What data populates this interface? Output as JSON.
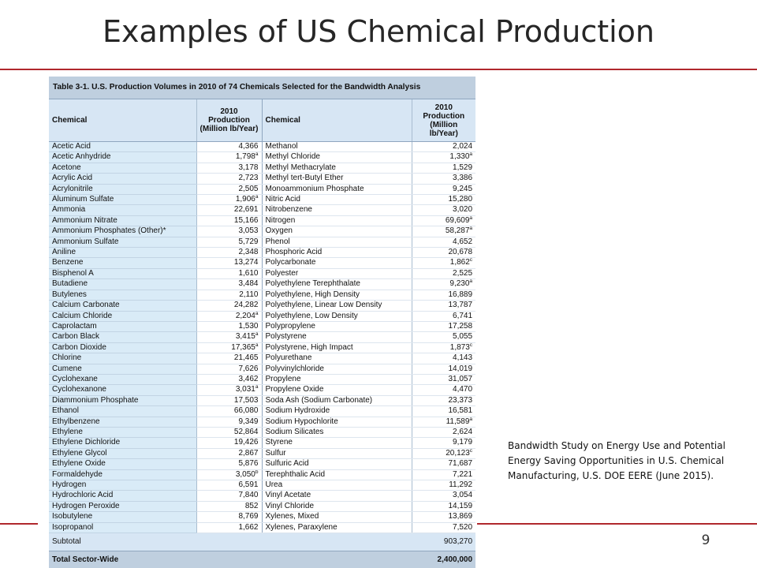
{
  "slide": {
    "title": "Examples of US Chemical Production",
    "page_number": "9",
    "citation": "Bandwidth Study on Energy Use and Potential Energy Saving Opportunities in U.S. Chemical Manufacturing, U.S. DOE EERE (June 2015)."
  },
  "table": {
    "caption": "Table 3-1. U.S. Production Volumes in 2010 of 74 Chemicals Selected for the Bandwidth Analysis",
    "headers": {
      "chemical": "Chemical",
      "production": "2010 Production (Million lb/Year)"
    },
    "rows": [
      {
        "c1": "Acetic Acid",
        "v1": "4,366",
        "s1": "",
        "c2": "Methanol",
        "v2": "2,024",
        "s2": ""
      },
      {
        "c1": "Acetic Anhydride",
        "v1": "1,798",
        "s1": "a",
        "c2": "Methyl Chloride",
        "v2": "1,330",
        "s2": "a"
      },
      {
        "c1": "Acetone",
        "v1": "3,178",
        "s1": "",
        "c2": "Methyl Methacrylate",
        "v2": "1,529",
        "s2": ""
      },
      {
        "c1": "Acrylic Acid",
        "v1": "2,723",
        "s1": "",
        "c2": "Methyl tert-Butyl Ether",
        "v2": "3,386",
        "s2": ""
      },
      {
        "c1": "Acrylonitrile",
        "v1": "2,505",
        "s1": "",
        "c2": "Monoammonium Phosphate",
        "v2": "9,245",
        "s2": ""
      },
      {
        "c1": "Aluminum Sulfate",
        "v1": "1,906",
        "s1": "a",
        "c2": "Nitric Acid",
        "v2": "15,280",
        "s2": ""
      },
      {
        "c1": "Ammonia",
        "v1": "22,691",
        "s1": "",
        "c2": "Nitrobenzene",
        "v2": "3,020",
        "s2": ""
      },
      {
        "c1": "Ammonium Nitrate",
        "v1": "15,166",
        "s1": "",
        "c2": "Nitrogen",
        "v2": "69,609",
        "s2": "a"
      },
      {
        "c1": "Ammonium Phosphates (Other)*",
        "v1": "3,053",
        "s1": "",
        "c2": "Oxygen",
        "v2": "58,287",
        "s2": "a"
      },
      {
        "c1": "Ammonium Sulfate",
        "v1": "5,729",
        "s1": "",
        "c2": "Phenol",
        "v2": "4,652",
        "s2": ""
      },
      {
        "c1": "Aniline",
        "v1": "2,348",
        "s1": "",
        "c2": "Phosphoric Acid",
        "v2": "20,678",
        "s2": ""
      },
      {
        "c1": "Benzene",
        "v1": "13,274",
        "s1": "",
        "c2": "Polycarbonate",
        "v2": "1,862",
        "s2": "c"
      },
      {
        "c1": "Bisphenol A",
        "v1": "1,610",
        "s1": "",
        "c2": "Polyester",
        "v2": "2,525",
        "s2": ""
      },
      {
        "c1": "Butadiene",
        "v1": "3,484",
        "s1": "",
        "c2": "Polyethylene Terephthalate",
        "v2": "9,230",
        "s2": "a"
      },
      {
        "c1": "Butylenes",
        "v1": "2,110",
        "s1": "",
        "c2": "Polyethylene, High Density",
        "v2": "16,889",
        "s2": ""
      },
      {
        "c1": "Calcium Carbonate",
        "v1": "24,282",
        "s1": "",
        "c2": "Polyethylene, Linear Low Density",
        "v2": "13,787",
        "s2": ""
      },
      {
        "c1": "Calcium Chloride",
        "v1": "2,204",
        "s1": "a",
        "c2": "Polyethylene, Low Density",
        "v2": "6,741",
        "s2": ""
      },
      {
        "c1": "Caprolactam",
        "v1": "1,530",
        "s1": "",
        "c2": "Polypropylene",
        "v2": "17,258",
        "s2": ""
      },
      {
        "c1": "Carbon Black",
        "v1": "3,415",
        "s1": "a",
        "c2": "Polystyrene",
        "v2": "5,055",
        "s2": ""
      },
      {
        "c1": "Carbon Dioxide",
        "v1": "17,365",
        "s1": "a",
        "c2": "Polystyrene, High Impact",
        "v2": "1,873",
        "s2": "c"
      },
      {
        "c1": "Chlorine",
        "v1": "21,465",
        "s1": "",
        "c2": "Polyurethane",
        "v2": "4,143",
        "s2": ""
      },
      {
        "c1": "Cumene",
        "v1": "7,626",
        "s1": "",
        "c2": "Polyvinylchloride",
        "v2": "14,019",
        "s2": ""
      },
      {
        "c1": "Cyclohexane",
        "v1": "3,462",
        "s1": "",
        "c2": "Propylene",
        "v2": "31,057",
        "s2": ""
      },
      {
        "c1": "Cyclohexanone",
        "v1": "3,031",
        "s1": "a",
        "c2": "Propylene Oxide",
        "v2": "4,470",
        "s2": ""
      },
      {
        "c1": "Diammonium Phosphate",
        "v1": "17,503",
        "s1": "",
        "c2": "Soda Ash (Sodium Carbonate)",
        "v2": "23,373",
        "s2": ""
      },
      {
        "c1": "Ethanol",
        "v1": "66,080",
        "s1": "",
        "c2": "Sodium Hydroxide",
        "v2": "16,581",
        "s2": ""
      },
      {
        "c1": "Ethylbenzene",
        "v1": "9,349",
        "s1": "",
        "c2": "Sodium Hypochlorite",
        "v2": "11,589",
        "s2": "a"
      },
      {
        "c1": "Ethylene",
        "v1": "52,864",
        "s1": "",
        "c2": "Sodium Silicates",
        "v2": "2,624",
        "s2": ""
      },
      {
        "c1": "Ethylene Dichloride",
        "v1": "19,426",
        "s1": "",
        "c2": "Styrene",
        "v2": "9,179",
        "s2": ""
      },
      {
        "c1": "Ethylene Glycol",
        "v1": "2,867",
        "s1": "",
        "c2": "Sulfur",
        "v2": "20,123",
        "s2": "c"
      },
      {
        "c1": "Ethylene Oxide",
        "v1": "5,876",
        "s1": "",
        "c2": "Sulfuric Acid",
        "v2": "71,687",
        "s2": ""
      },
      {
        "c1": "Formaldehyde",
        "v1": "3,050",
        "s1": "b",
        "c2": "Terephthalic Acid",
        "v2": "7,221",
        "s2": ""
      },
      {
        "c1": "Hydrogen",
        "v1": "6,591",
        "s1": "",
        "c2": "Urea",
        "v2": "11,292",
        "s2": ""
      },
      {
        "c1": "Hydrochloric Acid",
        "v1": "7,840",
        "s1": "",
        "c2": "Vinyl Acetate",
        "v2": "3,054",
        "s2": ""
      },
      {
        "c1": "Hydrogen Peroxide",
        "v1": "852",
        "s1": "",
        "c2": "Vinyl Chloride",
        "v2": "14,159",
        "s2": ""
      },
      {
        "c1": "Isobutylene",
        "v1": "8,769",
        "s1": "",
        "c2": "Xylenes, Mixed",
        "v2": "13,869",
        "s2": ""
      },
      {
        "c1": "Isopropanol",
        "v1": "1,662",
        "s1": "",
        "c2": "Xylenes, Paraxylene",
        "v2": "7,520",
        "s2": ""
      }
    ],
    "subtotal": {
      "label": "Subtotal",
      "value": "903,270"
    },
    "total": {
      "label": "Total Sector-Wide",
      "value": "2,400,000"
    }
  }
}
